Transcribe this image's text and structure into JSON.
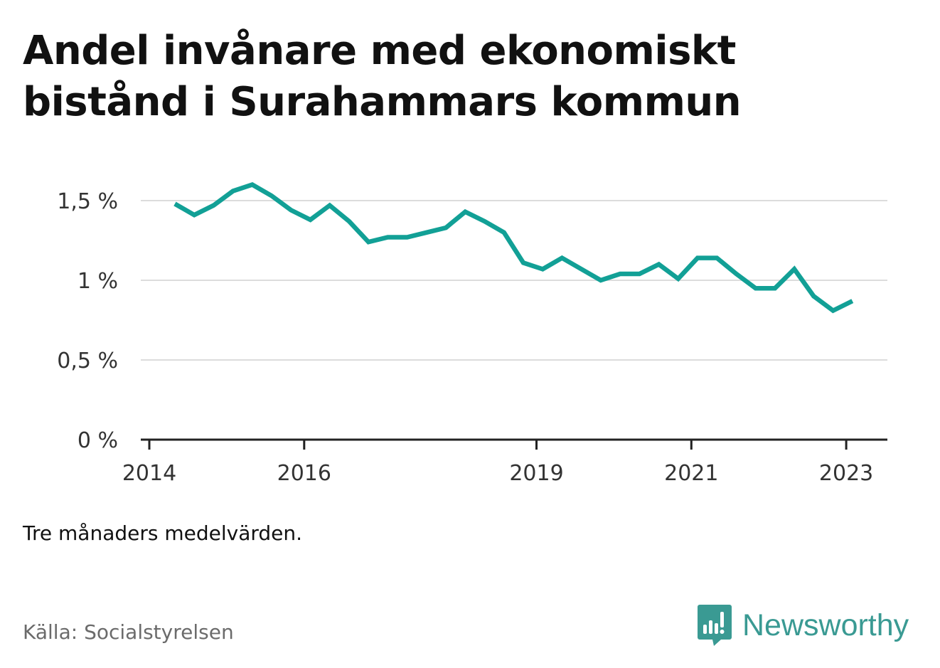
{
  "title": "Andel invånare med ekonomiskt bistånd i Surahammars kommun",
  "note": "Tre månaders medelvärden.",
  "source": "Källa: Socialstyrelsen",
  "brand": {
    "name": "Newsworthy",
    "logo_icon": "bar-chart-speech-bubble-icon",
    "color": "#3a9a93"
  },
  "chart_data": {
    "type": "line",
    "title": "Andel invånare med ekonomiskt bistånd i Surahammars kommun",
    "xlabel": "",
    "ylabel": "",
    "ylim": [
      0,
      1.5
    ],
    "yticks": [
      {
        "value": 0,
        "label": "0 %"
      },
      {
        "value": 0.5,
        "label": "0,5 %"
      },
      {
        "value": 1.0,
        "label": "1 %"
      },
      {
        "value": 1.5,
        "label": "1,5 %"
      }
    ],
    "xticks": [
      {
        "value": 2014,
        "label": "2014"
      },
      {
        "value": 2016,
        "label": "2016"
      },
      {
        "value": 2019,
        "label": "2019"
      },
      {
        "value": 2021,
        "label": "2021"
      },
      {
        "value": 2023,
        "label": "2023"
      }
    ],
    "grid": true,
    "line_color": "#12a096",
    "series": [
      {
        "name": "",
        "x": [
          2014.33,
          2014.58,
          2014.83,
          2015.08,
          2015.33,
          2015.58,
          2015.83,
          2016.08,
          2016.33,
          2016.58,
          2016.83,
          2017.08,
          2017.33,
          2017.58,
          2017.83,
          2018.08,
          2018.33,
          2018.58,
          2018.83,
          2019.08,
          2019.33,
          2019.58,
          2019.83,
          2020.08,
          2020.33,
          2020.58,
          2020.83,
          2021.08,
          2021.33,
          2021.58,
          2021.83,
          2022.08,
          2022.33,
          2022.58,
          2022.83,
          2023.08
        ],
        "values": [
          1.48,
          1.41,
          1.47,
          1.56,
          1.6,
          1.53,
          1.44,
          1.38,
          1.47,
          1.37,
          1.24,
          1.27,
          1.27,
          1.3,
          1.33,
          1.43,
          1.37,
          1.3,
          1.11,
          1.07,
          1.14,
          1.07,
          1.0,
          1.04,
          1.04,
          1.1,
          1.01,
          1.14,
          1.14,
          1.04,
          0.95,
          0.95,
          1.07,
          0.9,
          0.81,
          0.87
        ]
      }
    ]
  }
}
